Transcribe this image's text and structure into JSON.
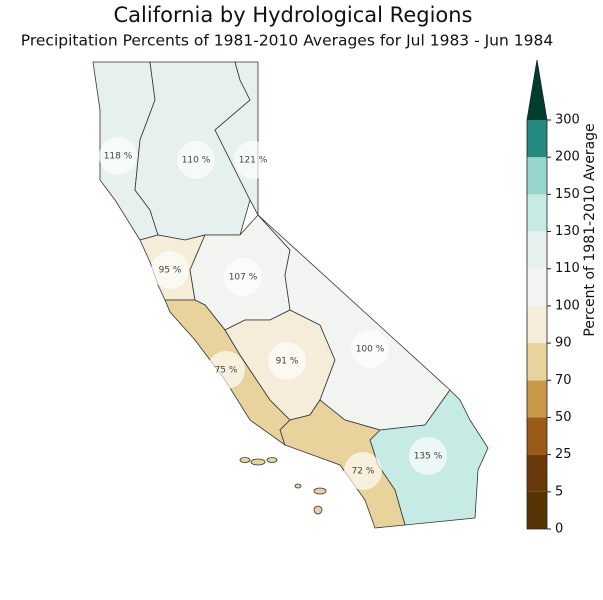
{
  "title": "California by Hydrological Regions",
  "subtitle": "Precipitation Percents of 1981-2010 Averages for Jul 1983 - Jun 1984",
  "regions": [
    {
      "value": 118,
      "label": "118 %"
    },
    {
      "value": 110,
      "label": "110 %"
    },
    {
      "value": 121,
      "label": "121 %"
    },
    {
      "value": 95,
      "label": "95 %"
    },
    {
      "value": 107,
      "label": "107 %"
    },
    {
      "value": 75,
      "label": "75 %"
    },
    {
      "value": 91,
      "label": "91 %"
    },
    {
      "value": 100,
      "label": "100 %"
    },
    {
      "value": 135,
      "label": "135 %"
    },
    {
      "value": 72,
      "label": "72 %"
    }
  ],
  "colorbar": {
    "label": "Percent of 1981-2010 Average",
    "ticks": [
      0,
      5,
      25,
      50,
      70,
      90,
      100,
      110,
      130,
      150,
      200,
      300
    ],
    "colors": [
      "#5a3305",
      "#6b3a0a",
      "#9b5b17",
      "#c99849",
      "#e8d39d",
      "#f5ecd9",
      "#f2f4f2",
      "#e6f0ee",
      "#c6ebe4",
      "#94d6cb",
      "#248a80"
    ],
    "extend_color": "#003c30"
  }
}
